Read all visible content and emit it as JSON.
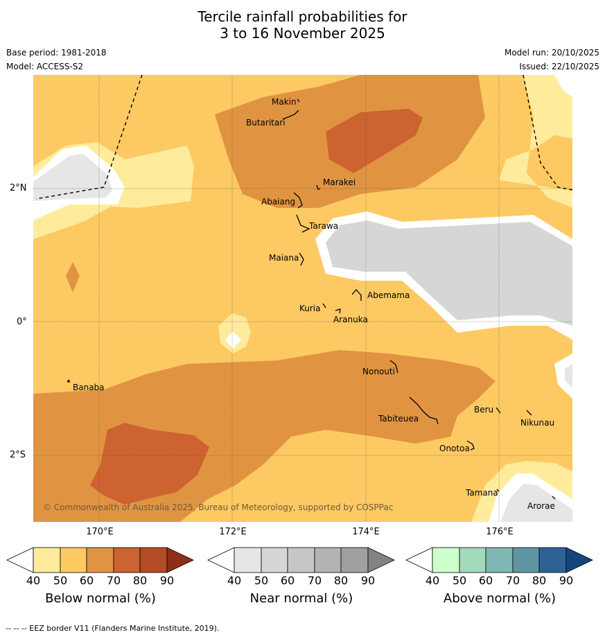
{
  "title_line1": "Tercile rainfall probabilities for",
  "title_line2": "3 to 16 November 2025",
  "base_period": "Base period: 1981-2018",
  "model": "Model: ACCESS-S2",
  "model_run": "Model run: 20/10/2025",
  "issued": "Issued: 22/10/2025",
  "copyright": "© Commonwealth of Australia 2025, Bureau of Meteorology, supported by COSPPac",
  "lat_labels": [
    "2°N",
    "0°",
    "2°S"
  ],
  "lon_labels": [
    "170°E",
    "172°E",
    "174°E",
    "176°E"
  ],
  "islands": {
    "makin": "Makin",
    "butaritari": "Butaritari",
    "marakei": "Marakei",
    "abaiang": "Abaiang",
    "tarawa": "Tarawa",
    "maiana": "Maiana",
    "abemama": "Abemama",
    "kuria": "Kuria",
    "aranuka": "Aranuka",
    "nonouti": "Nonouti",
    "banaba": "Banaba",
    "tabiteuea": "Tabiteuea",
    "beru": "Beru",
    "nikunau": "Nikunau",
    "onotoa": "Onotoa",
    "tamana": "Tamana",
    "arorae": "Arorae"
  },
  "legends": {
    "below": {
      "title": "Below normal (%)",
      "ticks": [
        "40",
        "50",
        "60",
        "70",
        "80",
        "90"
      ],
      "colors": [
        "#ffffff",
        "#ffeb9c",
        "#fdc963",
        "#e09442",
        "#cc6330",
        "#b24b26",
        "#8e2e18"
      ]
    },
    "near": {
      "title": "Near normal (%)",
      "ticks": [
        "40",
        "50",
        "60",
        "70",
        "80",
        "90"
      ],
      "colors": [
        "#ffffff",
        "#e6e6e6",
        "#d6d6d6",
        "#c6c6c6",
        "#b3b3b3",
        "#a0a0a0",
        "#838383"
      ]
    },
    "above": {
      "title": "Above normal (%)",
      "ticks": [
        "40",
        "50",
        "60",
        "70",
        "80",
        "90"
      ],
      "colors": [
        "#ffffff",
        "#ccffcc",
        "#a3d9bc",
        "#7fb8b2",
        "#5f94a3",
        "#2e6296",
        "#15457a"
      ]
    }
  },
  "footnote": "--  --  -- EEZ border V11 (Flanders Marine Institute, 2019)."
}
